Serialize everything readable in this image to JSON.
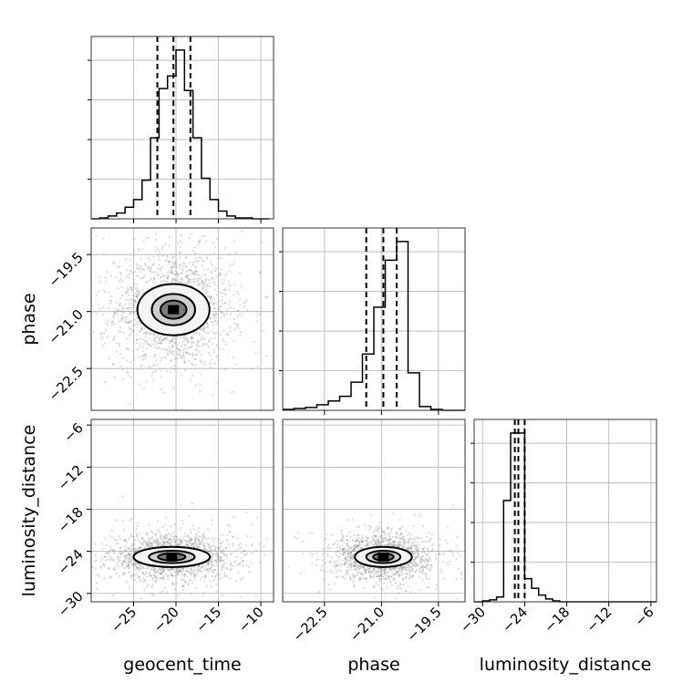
{
  "chart_data": {
    "type": "corner",
    "grid": true,
    "parameters": [
      {
        "name": "geocent_time",
        "label": "geocent_time",
        "range": [
          -30,
          -8.5
        ],
        "ticks": [
          -25,
          -20,
          -15,
          -10
        ],
        "tick_labels": [
          "−25",
          "−20",
          "−15",
          "−10"
        ],
        "quantiles": [
          -22.2,
          -20.3,
          -18.3
        ]
      },
      {
        "name": "phase",
        "label": "phase",
        "range": [
          -23.6,
          -18.8
        ],
        "ticks": [
          -22.5,
          -21.0,
          -19.5
        ],
        "tick_labels": [
          "−22.5",
          "−21.0",
          "−19.5"
        ],
        "quantiles": [
          -21.4,
          -20.95,
          -20.6
        ]
      },
      {
        "name": "luminosity_distance",
        "label": "luminosity_distance",
        "range": [
          -31.2,
          -5.2
        ],
        "ticks": [
          -30,
          -24,
          -18,
          -12,
          -6
        ],
        "tick_labels": [
          "−30",
          "−24",
          "−18",
          "−12",
          "−6"
        ],
        "quantiles": [
          -25.4,
          -24.9,
          -24.0
        ]
      }
    ],
    "histograms": [
      {
        "param": "geocent_time",
        "bin_edges": [
          -30,
          -29,
          -28,
          -27,
          -26,
          -25,
          -24,
          -23,
          -22,
          -21,
          -20,
          -19,
          -18,
          -17,
          -16,
          -15,
          -14,
          -13,
          -12,
          -11,
          -10,
          -9
        ],
        "counts": [
          0,
          1,
          3,
          6,
          12,
          20,
          40,
          84,
          135,
          148,
          175,
          133,
          84,
          42,
          20,
          8,
          3,
          1,
          1,
          0,
          0
        ]
      },
      {
        "param": "phase",
        "bin_edges": [
          -23.6,
          -23.3,
          -23.0,
          -22.7,
          -22.4,
          -22.1,
          -21.8,
          -21.5,
          -21.2,
          -20.9,
          -20.6,
          -20.3,
          -20.0,
          -19.7,
          -19.4,
          -19.1,
          -18.8
        ],
        "counts": [
          1,
          2,
          3,
          6,
          10,
          15,
          30,
          60,
          110,
          160,
          180,
          40,
          4,
          1,
          0,
          0
        ]
      },
      {
        "param": "luminosity_distance",
        "bin_edges": [
          -31.2,
          -30,
          -29,
          -28,
          -27,
          -26,
          -25,
          -24,
          -23,
          -22,
          -21,
          -20,
          -19,
          -18,
          -17,
          -16,
          -15,
          -14,
          -13,
          -12,
          -11,
          -10,
          -9,
          -8,
          -7,
          -6,
          -5.2
        ],
        "counts": [
          0,
          1,
          2,
          5,
          105,
          175,
          175,
          24,
          14,
          7,
          3,
          1,
          0,
          0,
          0,
          0,
          0,
          0,
          0,
          0,
          0,
          0,
          0,
          0,
          0,
          0
        ]
      }
    ],
    "joint": [
      {
        "x": "geocent_time",
        "y": "phase",
        "center": [
          -20.3,
          -20.95
        ],
        "spread": [
          3.4,
          0.75
        ]
      },
      {
        "x": "geocent_time",
        "y": "luminosity_distance",
        "center": [
          -20.5,
          -24.8
        ],
        "spread": [
          3.6,
          1.6
        ]
      },
      {
        "x": "phase",
        "y": "luminosity_distance",
        "center": [
          -20.95,
          -24.8
        ],
        "spread": [
          0.6,
          1.6
        ]
      }
    ]
  }
}
